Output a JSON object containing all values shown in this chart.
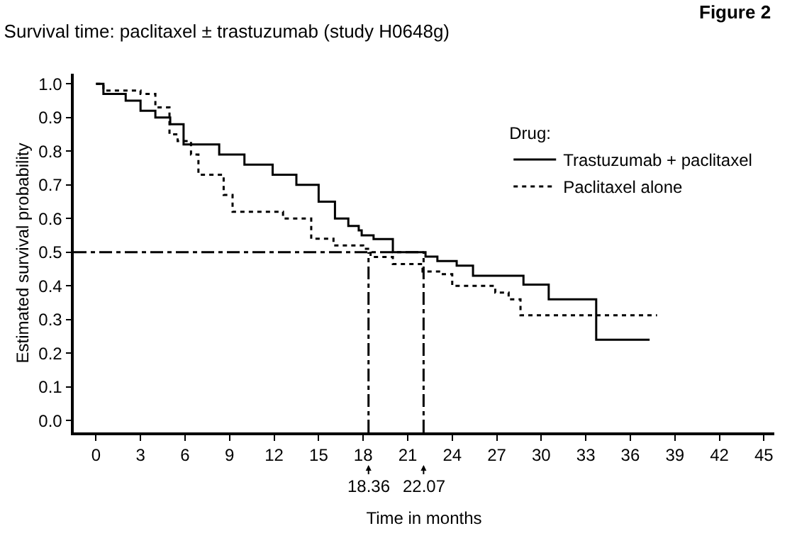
{
  "chart_data": {
    "type": "step",
    "title": "Survival time: paclitaxel ± trastuzumab (study H0648g)",
    "annotations": [
      "Figure 2",
      {
        "text": "18.36",
        "x": 18.36,
        "y": -0.035
      },
      {
        "text": "22.07",
        "x": 22.07,
        "y": -0.035
      }
    ],
    "xlabel": "Time in months",
    "ylabel": "Estimated survival probability",
    "legend_title": "Drug:",
    "legend": "top right",
    "xlim": [
      -1.5,
      45.7
    ],
    "ylim": [
      -0.035,
      1.03
    ],
    "xticks": [
      0,
      3,
      6,
      9,
      12,
      15,
      18,
      21,
      24,
      27,
      30,
      33,
      36,
      39,
      42,
      45
    ],
    "yticks": [
      {
        "value": 0,
        "label": "0.0"
      },
      0.1,
      0.2,
      0.3,
      0.4,
      0.5,
      0.6,
      0.7,
      0.8,
      0.9,
      {
        "value": 1,
        "label": "1.0"
      }
    ],
    "marker": "none",
    "series": [
      {
        "name": "Trastuzumab + paclitaxel",
        "color": "#000000",
        "line_style": "solid",
        "x": [
          0,
          0.5,
          2,
          3,
          4,
          5,
          5.9,
          8.3,
          10,
          11.9,
          13.5,
          15,
          16.1,
          17,
          17.7,
          17.9,
          18.7,
          20,
          22.2,
          23,
          24.3,
          25.4,
          28.8,
          30.5,
          33.7,
          37.3
        ],
        "values": [
          1.0,
          0.97,
          0.95,
          0.92,
          0.9,
          0.88,
          0.82,
          0.79,
          0.76,
          0.73,
          0.7,
          0.65,
          0.6,
          0.578,
          0.565,
          0.55,
          0.539,
          0.5,
          0.487,
          0.474,
          0.46,
          0.43,
          0.404,
          0.36,
          0.24,
          0.24
        ]
      },
      {
        "name": "Paclitaxel alone",
        "color": "#000000",
        "line_style": "dotted",
        "x": [
          0,
          0.5,
          3,
          4,
          4.95,
          5.5,
          6.4,
          6.9,
          8.6,
          9.2,
          12.6,
          14.5,
          16,
          18,
          18.5,
          20,
          22,
          23.2,
          24,
          26.9,
          27.8,
          28.6,
          37.8
        ],
        "values": [
          1.0,
          0.98,
          0.97,
          0.93,
          0.85,
          0.83,
          0.79,
          0.73,
          0.67,
          0.62,
          0.6,
          0.54,
          0.52,
          0.51,
          0.486,
          0.465,
          0.443,
          0.435,
          0.4,
          0.38,
          0.36,
          0.313,
          0.313
        ]
      }
    ],
    "ref_lines": [
      {
        "axis": "y",
        "value": 0.5,
        "line_style": "dashed",
        "color": "#000000"
      },
      {
        "axis": "x",
        "value": 18.36,
        "line_style": "dashed",
        "color": "#000000"
      },
      {
        "axis": "x",
        "value": 22.07,
        "line_style": "dashed",
        "color": "#000000"
      }
    ]
  }
}
